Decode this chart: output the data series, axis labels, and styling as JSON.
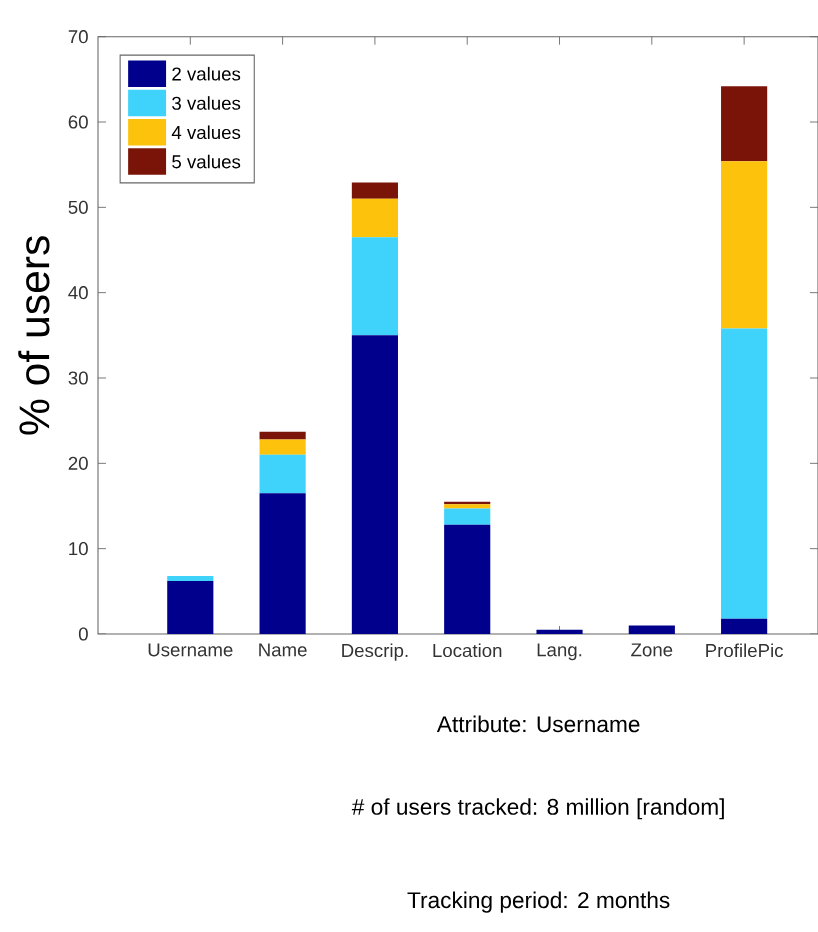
{
  "chart_data": {
    "type": "bar",
    "stacked": true,
    "categories": [
      "Username",
      "Name",
      "Descrip.",
      "Location",
      "Lang.",
      "Zone",
      "ProfilePic"
    ],
    "series": [
      {
        "name": "2 values",
        "color": "#00008c",
        "values": [
          6.2,
          16.5,
          35,
          12.8,
          0.5,
          1.0,
          1.8
        ]
      },
      {
        "name": "3 values",
        "color": "#3fd2fa",
        "values": [
          0.6,
          4.5,
          11.5,
          1.9,
          0,
          0,
          34
        ]
      },
      {
        "name": "4 values",
        "color": "#fdc20c",
        "values": [
          0,
          1.8,
          4.5,
          0.5,
          0,
          0,
          19.6
        ]
      },
      {
        "name": "5 values",
        "color": "#7a1408",
        "values": [
          0,
          0.9,
          1.9,
          0.3,
          0,
          0,
          8.8
        ]
      }
    ],
    "ylabel": "% of users",
    "ylim": [
      0,
      70
    ],
    "yticks": [
      0,
      10,
      20,
      30,
      40,
      50,
      60,
      70
    ],
    "legend": "top left",
    "grid": false,
    "annotations": [
      "Attribute: Username",
      "# of users tracked: 8 million [random]",
      "Tracking period: 2 months"
    ]
  }
}
